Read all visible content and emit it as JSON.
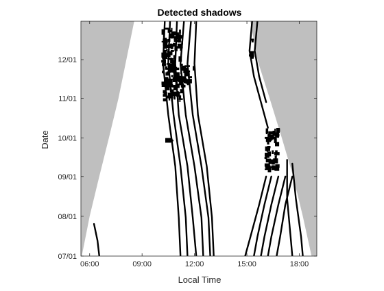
{
  "chart_data": {
    "type": "heatmap",
    "title": "Detected shadows",
    "xlabel": "Local Time",
    "ylabel": "Date",
    "x_unit": "hours",
    "y_unit": "days since 07/01",
    "xlim": [
      5.5,
      19.0
    ],
    "ylim": [
      0,
      183
    ],
    "xticks": [
      {
        "value": 6,
        "label": "06:00"
      },
      {
        "value": 9,
        "label": "09:00"
      },
      {
        "value": 12,
        "label": "12:00"
      },
      {
        "value": 15,
        "label": "15:00"
      },
      {
        "value": 18,
        "label": "18:00"
      }
    ],
    "yticks": [
      {
        "value": 0,
        "label": "07/01"
      },
      {
        "value": 31,
        "label": "08/01"
      },
      {
        "value": 62,
        "label": "09/01"
      },
      {
        "value": 92,
        "label": "10/01"
      },
      {
        "value": 123,
        "label": "11/01"
      },
      {
        "value": 153,
        "label": "12/01"
      }
    ],
    "grid": false,
    "legend": "none",
    "colors": {
      "shadow": "#000000",
      "night": "#bfbfbf",
      "background": "#ffffff",
      "axis": "#262626"
    },
    "night_regions": [
      {
        "name": "before sunrise",
        "boundary": [
          {
            "x": 5.55,
            "y": 0
          },
          {
            "x": 6.0,
            "y": 31
          },
          {
            "x": 6.55,
            "y": 62
          },
          {
            "x": 7.1,
            "y": 92
          },
          {
            "x": 7.65,
            "y": 123
          },
          {
            "x": 8.1,
            "y": 153
          },
          {
            "x": 8.55,
            "y": 183
          }
        ]
      },
      {
        "name": "after sunset",
        "boundary": [
          {
            "x": 18.7,
            "y": 0
          },
          {
            "x": 18.2,
            "y": 31
          },
          {
            "x": 17.65,
            "y": 62
          },
          {
            "x": 17.0,
            "y": 92
          },
          {
            "x": 16.3,
            "y": 123
          },
          {
            "x": 15.6,
            "y": 153
          },
          {
            "x": 15.2,
            "y": 183
          }
        ]
      }
    ],
    "shadow_tracks": [
      [
        {
          "x": 6.25,
          "y": 25
        },
        {
          "x": 6.45,
          "y": 12
        },
        {
          "x": 6.55,
          "y": 0
        }
      ],
      [
        {
          "x": 10.3,
          "y": 183
        },
        {
          "x": 10.2,
          "y": 150
        },
        {
          "x": 10.5,
          "y": 110
        },
        {
          "x": 10.9,
          "y": 70
        },
        {
          "x": 11.1,
          "y": 30
        },
        {
          "x": 11.2,
          "y": 0
        }
      ],
      [
        {
          "x": 10.6,
          "y": 183
        },
        {
          "x": 10.5,
          "y": 150
        },
        {
          "x": 10.8,
          "y": 110
        },
        {
          "x": 11.2,
          "y": 70
        },
        {
          "x": 11.5,
          "y": 30
        },
        {
          "x": 11.6,
          "y": 0
        }
      ],
      [
        {
          "x": 11.0,
          "y": 183
        },
        {
          "x": 10.9,
          "y": 150
        },
        {
          "x": 11.1,
          "y": 110
        },
        {
          "x": 11.6,
          "y": 70
        },
        {
          "x": 11.9,
          "y": 30
        },
        {
          "x": 12.1,
          "y": 0
        }
      ],
      [
        {
          "x": 11.4,
          "y": 183
        },
        {
          "x": 11.2,
          "y": 150
        },
        {
          "x": 11.5,
          "y": 110
        },
        {
          "x": 12.0,
          "y": 70
        },
        {
          "x": 12.4,
          "y": 30
        },
        {
          "x": 12.5,
          "y": 0
        }
      ],
      [
        {
          "x": 11.8,
          "y": 183
        },
        {
          "x": 11.6,
          "y": 150
        },
        {
          "x": 11.9,
          "y": 110
        },
        {
          "x": 12.4,
          "y": 70
        },
        {
          "x": 12.8,
          "y": 30
        },
        {
          "x": 12.9,
          "y": 0
        }
      ],
      [
        {
          "x": 12.1,
          "y": 183
        },
        {
          "x": 12.0,
          "y": 150
        },
        {
          "x": 12.2,
          "y": 110
        },
        {
          "x": 12.7,
          "y": 70
        },
        {
          "x": 13.0,
          "y": 30
        },
        {
          "x": 13.1,
          "y": 0
        }
      ],
      [
        {
          "x": 16.1,
          "y": 62
        },
        {
          "x": 15.7,
          "y": 40
        },
        {
          "x": 15.2,
          "y": 15
        },
        {
          "x": 14.9,
          "y": 0
        }
      ],
      [
        {
          "x": 16.4,
          "y": 62
        },
        {
          "x": 16.0,
          "y": 40
        },
        {
          "x": 15.6,
          "y": 15
        },
        {
          "x": 15.4,
          "y": 0
        }
      ],
      [
        {
          "x": 16.8,
          "y": 62
        },
        {
          "x": 16.4,
          "y": 40
        },
        {
          "x": 16.0,
          "y": 15
        },
        {
          "x": 15.8,
          "y": 0
        }
      ],
      [
        {
          "x": 17.2,
          "y": 62
        },
        {
          "x": 16.8,
          "y": 40
        },
        {
          "x": 16.4,
          "y": 15
        },
        {
          "x": 16.2,
          "y": 0
        }
      ],
      [
        {
          "x": 17.6,
          "y": 62
        },
        {
          "x": 17.2,
          "y": 40
        },
        {
          "x": 16.9,
          "y": 15
        },
        {
          "x": 16.7,
          "y": 0
        }
      ],
      [
        {
          "x": 17.3,
          "y": 75
        },
        {
          "x": 17.3,
          "y": 45
        },
        {
          "x": 17.5,
          "y": 15
        },
        {
          "x": 17.6,
          "y": 0
        }
      ],
      [
        {
          "x": 17.6,
          "y": 72
        },
        {
          "x": 17.8,
          "y": 45
        },
        {
          "x": 18.1,
          "y": 15
        },
        {
          "x": 18.2,
          "y": 0
        }
      ],
      [
        {
          "x": 15.3,
          "y": 183
        },
        {
          "x": 15.15,
          "y": 160
        },
        {
          "x": 15.4,
          "y": 140
        },
        {
          "x": 15.8,
          "y": 120
        },
        {
          "x": 16.2,
          "y": 100
        }
      ],
      [
        {
          "x": 15.6,
          "y": 183
        },
        {
          "x": 15.45,
          "y": 160
        },
        {
          "x": 15.7,
          "y": 140
        },
        {
          "x": 16.1,
          "y": 120
        }
      ]
    ],
    "shadow_blobs": [
      {
        "x0": 10.1,
        "x1": 11.4,
        "y0": 120,
        "y1": 178
      },
      {
        "x0": 10.2,
        "x1": 12.0,
        "y0": 130,
        "y1": 150
      },
      {
        "x0": 10.3,
        "x1": 10.9,
        "y0": 88,
        "y1": 92
      },
      {
        "x0": 16.0,
        "x1": 16.9,
        "y0": 65,
        "y1": 100
      },
      {
        "x0": 15.2,
        "x1": 15.4,
        "y0": 150,
        "y1": 175
      }
    ]
  }
}
